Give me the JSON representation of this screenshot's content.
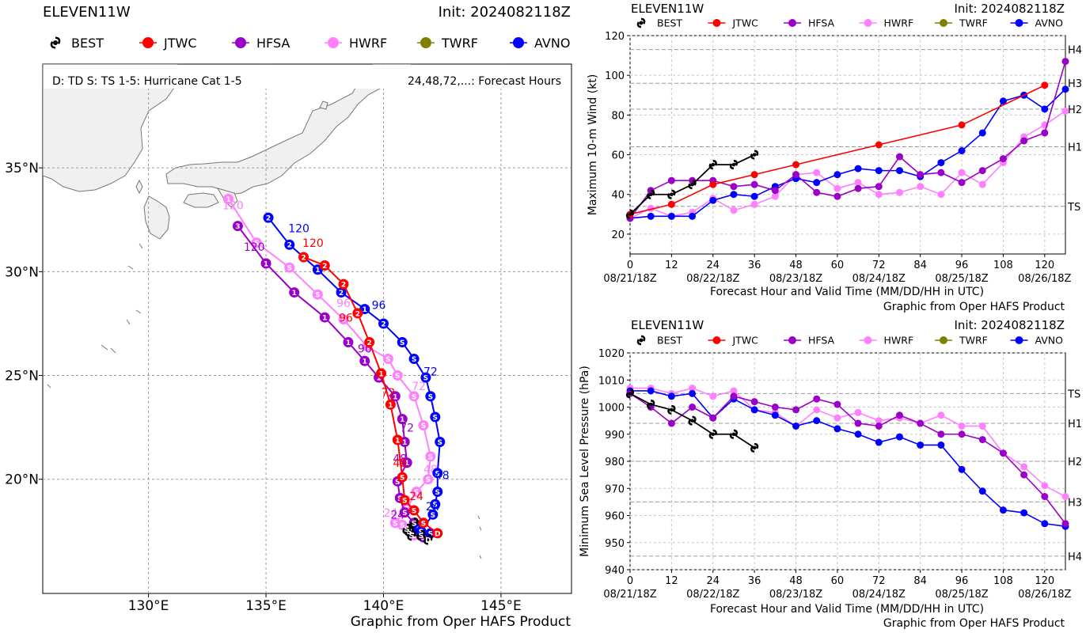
{
  "colors": {
    "BEST": "#000000",
    "JTWC": "#ff0000",
    "HFSA": "#9a00c8",
    "HWRF": "#ff80ff",
    "TWRF": "#808000",
    "AVNO": "#0000ff",
    "land": "#f0f0f0",
    "water": "#ffffff"
  },
  "legend": [
    {
      "name": "BEST",
      "icon": "hurricane-symbol-icon"
    },
    {
      "name": "JTWC",
      "icon": "dot-icon"
    },
    {
      "name": "HFSA",
      "icon": "dot-icon"
    },
    {
      "name": "HWRF",
      "icon": "dot-icon"
    },
    {
      "name": "TWRF",
      "icon": "dot-icon"
    },
    {
      "name": "AVNO",
      "icon": "dot-icon"
    }
  ],
  "map": {
    "storm": "ELEVEN11W",
    "init": "Init: 2024082118Z",
    "key_left": "D: TD  S: TS  1-5: Hurricane Cat 1-5",
    "key_right": "24,48,72,...: Forecast Hours",
    "credit": "Graphic from Oper HAFS Product",
    "lon_range": [
      125.5,
      148.0
    ],
    "lat_range": [
      14.5,
      40.0
    ],
    "lon_ticks": [
      {
        "v": 130,
        "label": "130°E"
      },
      {
        "v": 135,
        "label": "135°E"
      },
      {
        "v": 140,
        "label": "140°E"
      },
      {
        "v": 145,
        "label": "145°E"
      }
    ],
    "lat_ticks": [
      {
        "v": 20,
        "label": "20°N"
      },
      {
        "v": 25,
        "label": "25°N"
      },
      {
        "v": 30,
        "label": "30°N"
      },
      {
        "v": 35,
        "label": "35°N"
      }
    ]
  },
  "chart_data": [
    {
      "type": "map-track",
      "title": "ELEVEN11W",
      "subtitle": "Init: 2024082118Z",
      "series": [
        {
          "name": "BEST",
          "points": [
            [
              141.9,
              17.1
            ],
            [
              141.6,
              17.3
            ],
            [
              141.2,
              17.3
            ],
            [
              141.1,
              17.5
            ],
            [
              141.0,
              17.6
            ],
            [
              141.3,
              17.9
            ]
          ],
          "markers": [
            "D",
            "S",
            "S",
            "S",
            "S",
            "S"
          ]
        },
        {
          "name": "JTWC",
          "points": [
            [
              142.3,
              17.4
            ],
            [
              141.7,
              17.9
            ],
            [
              141.3,
              18.5
            ],
            [
              140.9,
              19.0
            ],
            [
              140.8,
              20.1
            ],
            [
              140.6,
              21.9
            ],
            [
              140.3,
              23.6
            ],
            [
              139.9,
              25.1
            ],
            [
              139.4,
              26.6
            ],
            [
              138.9,
              28.0
            ],
            [
              138.3,
              29.4
            ],
            [
              137.5,
              30.3
            ],
            [
              136.6,
              30.7
            ]
          ],
          "markers": [
            "D",
            "S",
            "S",
            "S",
            "S",
            "1",
            "1",
            "1",
            "2",
            "2",
            "2",
            "2",
            "2"
          ],
          "labels": {
            "24": [
              141.4,
              19.0
            ],
            "48": [
              140.7,
              20.6
            ],
            "72": [
              140.2,
              24.0
            ],
            "96": [
              138.4,
              27.6
            ],
            "120": [
              137.0,
              31.2
            ]
          }
        },
        {
          "name": "HFSA",
          "points": [
            [
              141.7,
              17.2
            ],
            [
              141.3,
              17.9
            ],
            [
              140.9,
              18.4
            ],
            [
              140.7,
              19.1
            ],
            [
              140.6,
              19.9
            ],
            [
              141.0,
              20.8
            ],
            [
              140.9,
              21.8
            ],
            [
              140.8,
              22.9
            ],
            [
              140.5,
              24.0
            ],
            [
              139.8,
              24.9
            ],
            [
              139.2,
              25.7
            ],
            [
              138.5,
              26.6
            ],
            [
              137.5,
              27.8
            ],
            [
              136.2,
              29.0
            ],
            [
              135.0,
              30.4
            ],
            [
              133.8,
              32.2
            ]
          ],
          "markers": [
            "S",
            "S",
            "S",
            "S",
            "S",
            "1",
            "1",
            "1",
            "1",
            "1",
            "1",
            "1",
            "1",
            "1",
            "1",
            "3"
          ],
          "labels": {
            "24": [
              140.6,
              18.1
            ],
            "48": [
              140.7,
              20.8
            ],
            "72": [
              141.0,
              22.3
            ],
            "96": [
              139.2,
              26.1
            ],
            "120": [
              134.5,
              31.0
            ]
          }
        },
        {
          "name": "HWRF",
          "points": [
            [
              141.3,
              17.3
            ],
            [
              140.8,
              17.8
            ],
            [
              140.5,
              17.9
            ],
            [
              141.0,
              18.6
            ],
            [
              141.4,
              19.4
            ],
            [
              141.9,
              20.0
            ],
            [
              142.0,
              21.1
            ],
            [
              141.7,
              22.6
            ],
            [
              141.3,
              24.0
            ],
            [
              140.6,
              25.0
            ],
            [
              140.2,
              25.8
            ],
            [
              139.3,
              26.4
            ],
            [
              138.3,
              27.7
            ],
            [
              137.2,
              28.9
            ],
            [
              136.0,
              30.2
            ],
            [
              134.6,
              31.4
            ],
            [
              133.4,
              33.5
            ]
          ],
          "markers": [
            "S",
            "S",
            "S",
            "S",
            "S",
            "S",
            "S",
            "S",
            "S",
            "S",
            "S",
            "S",
            "S",
            "S",
            "S",
            "S",
            "1"
          ],
          "labels": {
            "24": [
              140.3,
              18.2
            ],
            "48": [
              142.0,
              20.3
            ],
            "72": [
              141.5,
              24.3
            ],
            "96": [
              138.3,
              28.3
            ],
            "120": [
              133.6,
              33.0
            ]
          }
        },
        {
          "name": "AVNO",
          "points": [
            [
              142.0,
              17.4
            ],
            [
              141.5,
              17.6
            ],
            [
              141.6,
              17.5
            ],
            [
              142.1,
              18.3
            ],
            [
              142.2,
              18.8
            ],
            [
              142.3,
              19.4
            ],
            [
              142.3,
              20.3
            ],
            [
              142.4,
              21.8
            ],
            [
              142.2,
              23.0
            ],
            [
              142.0,
              24.0
            ],
            [
              141.8,
              24.9
            ],
            [
              141.3,
              25.8
            ],
            [
              140.8,
              26.6
            ],
            [
              140.0,
              27.5
            ],
            [
              139.2,
              28.2
            ],
            [
              138.2,
              29.0
            ],
            [
              137.2,
              30.1
            ],
            [
              136.0,
              31.3
            ],
            [
              135.1,
              32.6
            ]
          ],
          "markers": [
            "S",
            "S",
            "S",
            "S",
            "S",
            "S",
            "S",
            "S",
            "S",
            "S",
            "S",
            "S",
            "S",
            "2",
            "1",
            "2",
            "1",
            "2",
            "2"
          ],
          "labels": {
            "24": [
              142.1,
              18.5
            ],
            "48": [
              142.5,
              20.0
            ],
            "72": [
              142.0,
              25.0
            ],
            "96": [
              139.8,
              28.2
            ],
            "120": [
              136.4,
              31.9
            ]
          }
        }
      ]
    },
    {
      "type": "line",
      "title": "ELEVEN11W",
      "subtitle": "Init: 2024082118Z",
      "xlabel": "Forecast Hour and Valid Time (MM/DD/HH in UTC)",
      "ylabel": "Maximum 10-m Wind (kt)",
      "credit": "Graphic from Oper HAFS Product",
      "xlim": [
        0,
        126
      ],
      "ylim": [
        10,
        120
      ],
      "xticks": [
        0,
        12,
        24,
        36,
        48,
        60,
        72,
        84,
        96,
        108,
        120
      ],
      "xdates": [
        "08/21/18Z",
        "08/22/18Z",
        "08/23/18Z",
        "08/24/18Z",
        "08/25/18Z",
        "08/26/18Z"
      ],
      "yticks": [
        20,
        40,
        60,
        80,
        100,
        120
      ],
      "category_lines": [
        {
          "v": 34,
          "label": "TS"
        },
        {
          "v": 64,
          "label": "H1"
        },
        {
          "v": 83,
          "label": "H2"
        },
        {
          "v": 96,
          "label": "H3"
        },
        {
          "v": 113,
          "label": "H4"
        }
      ],
      "series": [
        {
          "name": "BEST",
          "x": [
            0,
            6,
            12,
            18,
            24,
            30,
            36
          ],
          "y": [
            30,
            40,
            40,
            45,
            55,
            55,
            60
          ]
        },
        {
          "name": "JTWC",
          "x": [
            0,
            12,
            24,
            36,
            48,
            72,
            96,
            120
          ],
          "y": [
            30,
            35,
            45,
            50,
            55,
            65,
            75,
            95
          ]
        },
        {
          "name": "HFSA",
          "x": [
            0,
            6,
            12,
            18,
            24,
            30,
            36,
            42,
            48,
            54,
            60,
            66,
            72,
            78,
            84,
            90,
            96,
            102,
            108,
            114,
            120,
            126
          ],
          "y": [
            28,
            42,
            47,
            47,
            47,
            44,
            45,
            42,
            50,
            41,
            39,
            43,
            44,
            59,
            50,
            51,
            46,
            52,
            58,
            67,
            71,
            107
          ]
        },
        {
          "name": "HWRF",
          "x": [
            0,
            6,
            12,
            18,
            24,
            30,
            36,
            42,
            48,
            54,
            60,
            66,
            72,
            78,
            84,
            90,
            96,
            102,
            108,
            114,
            120,
            126
          ],
          "y": [
            28,
            33,
            29,
            31,
            38,
            32,
            35,
            39,
            50,
            51,
            43,
            46,
            40,
            41,
            44,
            40,
            51,
            45,
            56,
            69,
            75,
            82
          ]
        },
        {
          "name": "AVNO",
          "x": [
            0,
            6,
            12,
            18,
            24,
            30,
            36,
            42,
            48,
            54,
            60,
            66,
            72,
            78,
            84,
            90,
            96,
            102,
            108,
            114,
            120,
            126
          ],
          "y": [
            28,
            29,
            29,
            29,
            37,
            40,
            39,
            44,
            48,
            46,
            50,
            53,
            52,
            52,
            49,
            56,
            62,
            71,
            87,
            90,
            83,
            93
          ]
        }
      ]
    },
    {
      "type": "line",
      "title": "ELEVEN11W",
      "subtitle": "Init: 2024082118Z",
      "xlabel": "Forecast Hour and Valid Time (MM/DD/HH in UTC)",
      "ylabel": "Minimum Sea Level Pressure (hPa)",
      "credit": "Graphic from Oper HAFS Product",
      "xlim": [
        0,
        126
      ],
      "ylim": [
        940,
        1020
      ],
      "xticks": [
        0,
        12,
        24,
        36,
        48,
        60,
        72,
        84,
        96,
        108,
        120
      ],
      "xdates": [
        "08/21/18Z",
        "08/22/18Z",
        "08/23/18Z",
        "08/24/18Z",
        "08/25/18Z",
        "08/26/18Z"
      ],
      "yticks": [
        940,
        950,
        960,
        970,
        980,
        990,
        1000,
        1010,
        1020
      ],
      "category_lines": [
        {
          "v": 1005,
          "label": "TS"
        },
        {
          "v": 994,
          "label": "H1"
        },
        {
          "v": 980,
          "label": "H2"
        },
        {
          "v": 965,
          "label": "H3"
        },
        {
          "v": 945,
          "label": "H4"
        }
      ],
      "series": [
        {
          "name": "BEST",
          "x": [
            0,
            6,
            12,
            18,
            24,
            30,
            36
          ],
          "y": [
            1005,
            1001,
            999,
            995,
            990,
            990,
            985
          ]
        },
        {
          "name": "HFSA",
          "x": [
            0,
            6,
            12,
            18,
            24,
            30,
            36,
            42,
            48,
            54,
            60,
            66,
            72,
            78,
            84,
            90,
            96,
            102,
            108,
            114,
            120,
            126
          ],
          "y": [
            1005,
            1000,
            994,
            1000,
            996,
            1004,
            1002,
            1000,
            999,
            1003,
            1001,
            994,
            993,
            997,
            994,
            990,
            990,
            988,
            983,
            975,
            967,
            957
          ]
        },
        {
          "name": "HWRF",
          "x": [
            0,
            6,
            12,
            18,
            24,
            30,
            36,
            42,
            48,
            54,
            60,
            66,
            72,
            78,
            84,
            90,
            96,
            102,
            108,
            114,
            120,
            126
          ],
          "y": [
            1007,
            1007,
            1005,
            1007,
            1004,
            1006,
            999,
            998,
            993,
            999,
            996,
            998,
            995,
            996,
            994,
            997,
            993,
            993,
            983,
            978,
            971,
            967
          ]
        },
        {
          "name": "AVNO",
          "x": [
            0,
            6,
            12,
            18,
            24,
            30,
            36,
            42,
            48,
            54,
            60,
            66,
            72,
            78,
            84,
            90,
            96,
            102,
            108,
            114,
            120,
            126
          ],
          "y": [
            1006,
            1006,
            1004,
            1005,
            996,
            1003,
            999,
            997,
            993,
            995,
            992,
            990,
            987,
            989,
            986,
            986,
            977,
            969,
            962,
            961,
            957,
            956
          ]
        }
      ]
    }
  ]
}
